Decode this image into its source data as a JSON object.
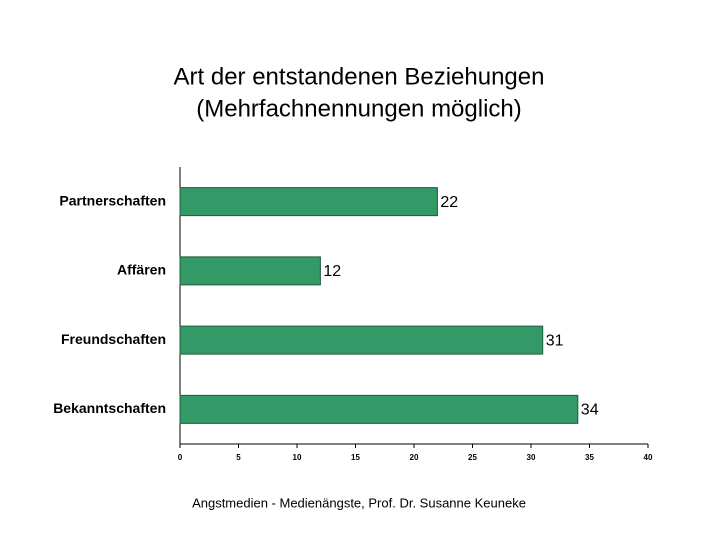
{
  "chart_data": {
    "type": "bar",
    "orientation": "horizontal",
    "title": "Art der entstandenen Beziehungen",
    "subtitle": "(Mehrfachnennungen möglich)",
    "categories": [
      "Partnerschaften",
      "Affären",
      "Freundschaften",
      "Bekanntschaften"
    ],
    "values": [
      22,
      12,
      31,
      34
    ],
    "color": "#339966",
    "xlim": [
      0,
      40
    ],
    "xticks": [
      0,
      5,
      10,
      15,
      20,
      25,
      30,
      35,
      40
    ],
    "grid": false,
    "source": "Angstmedien - Medienängste, Prof. Dr. Susanne Keuneke"
  }
}
